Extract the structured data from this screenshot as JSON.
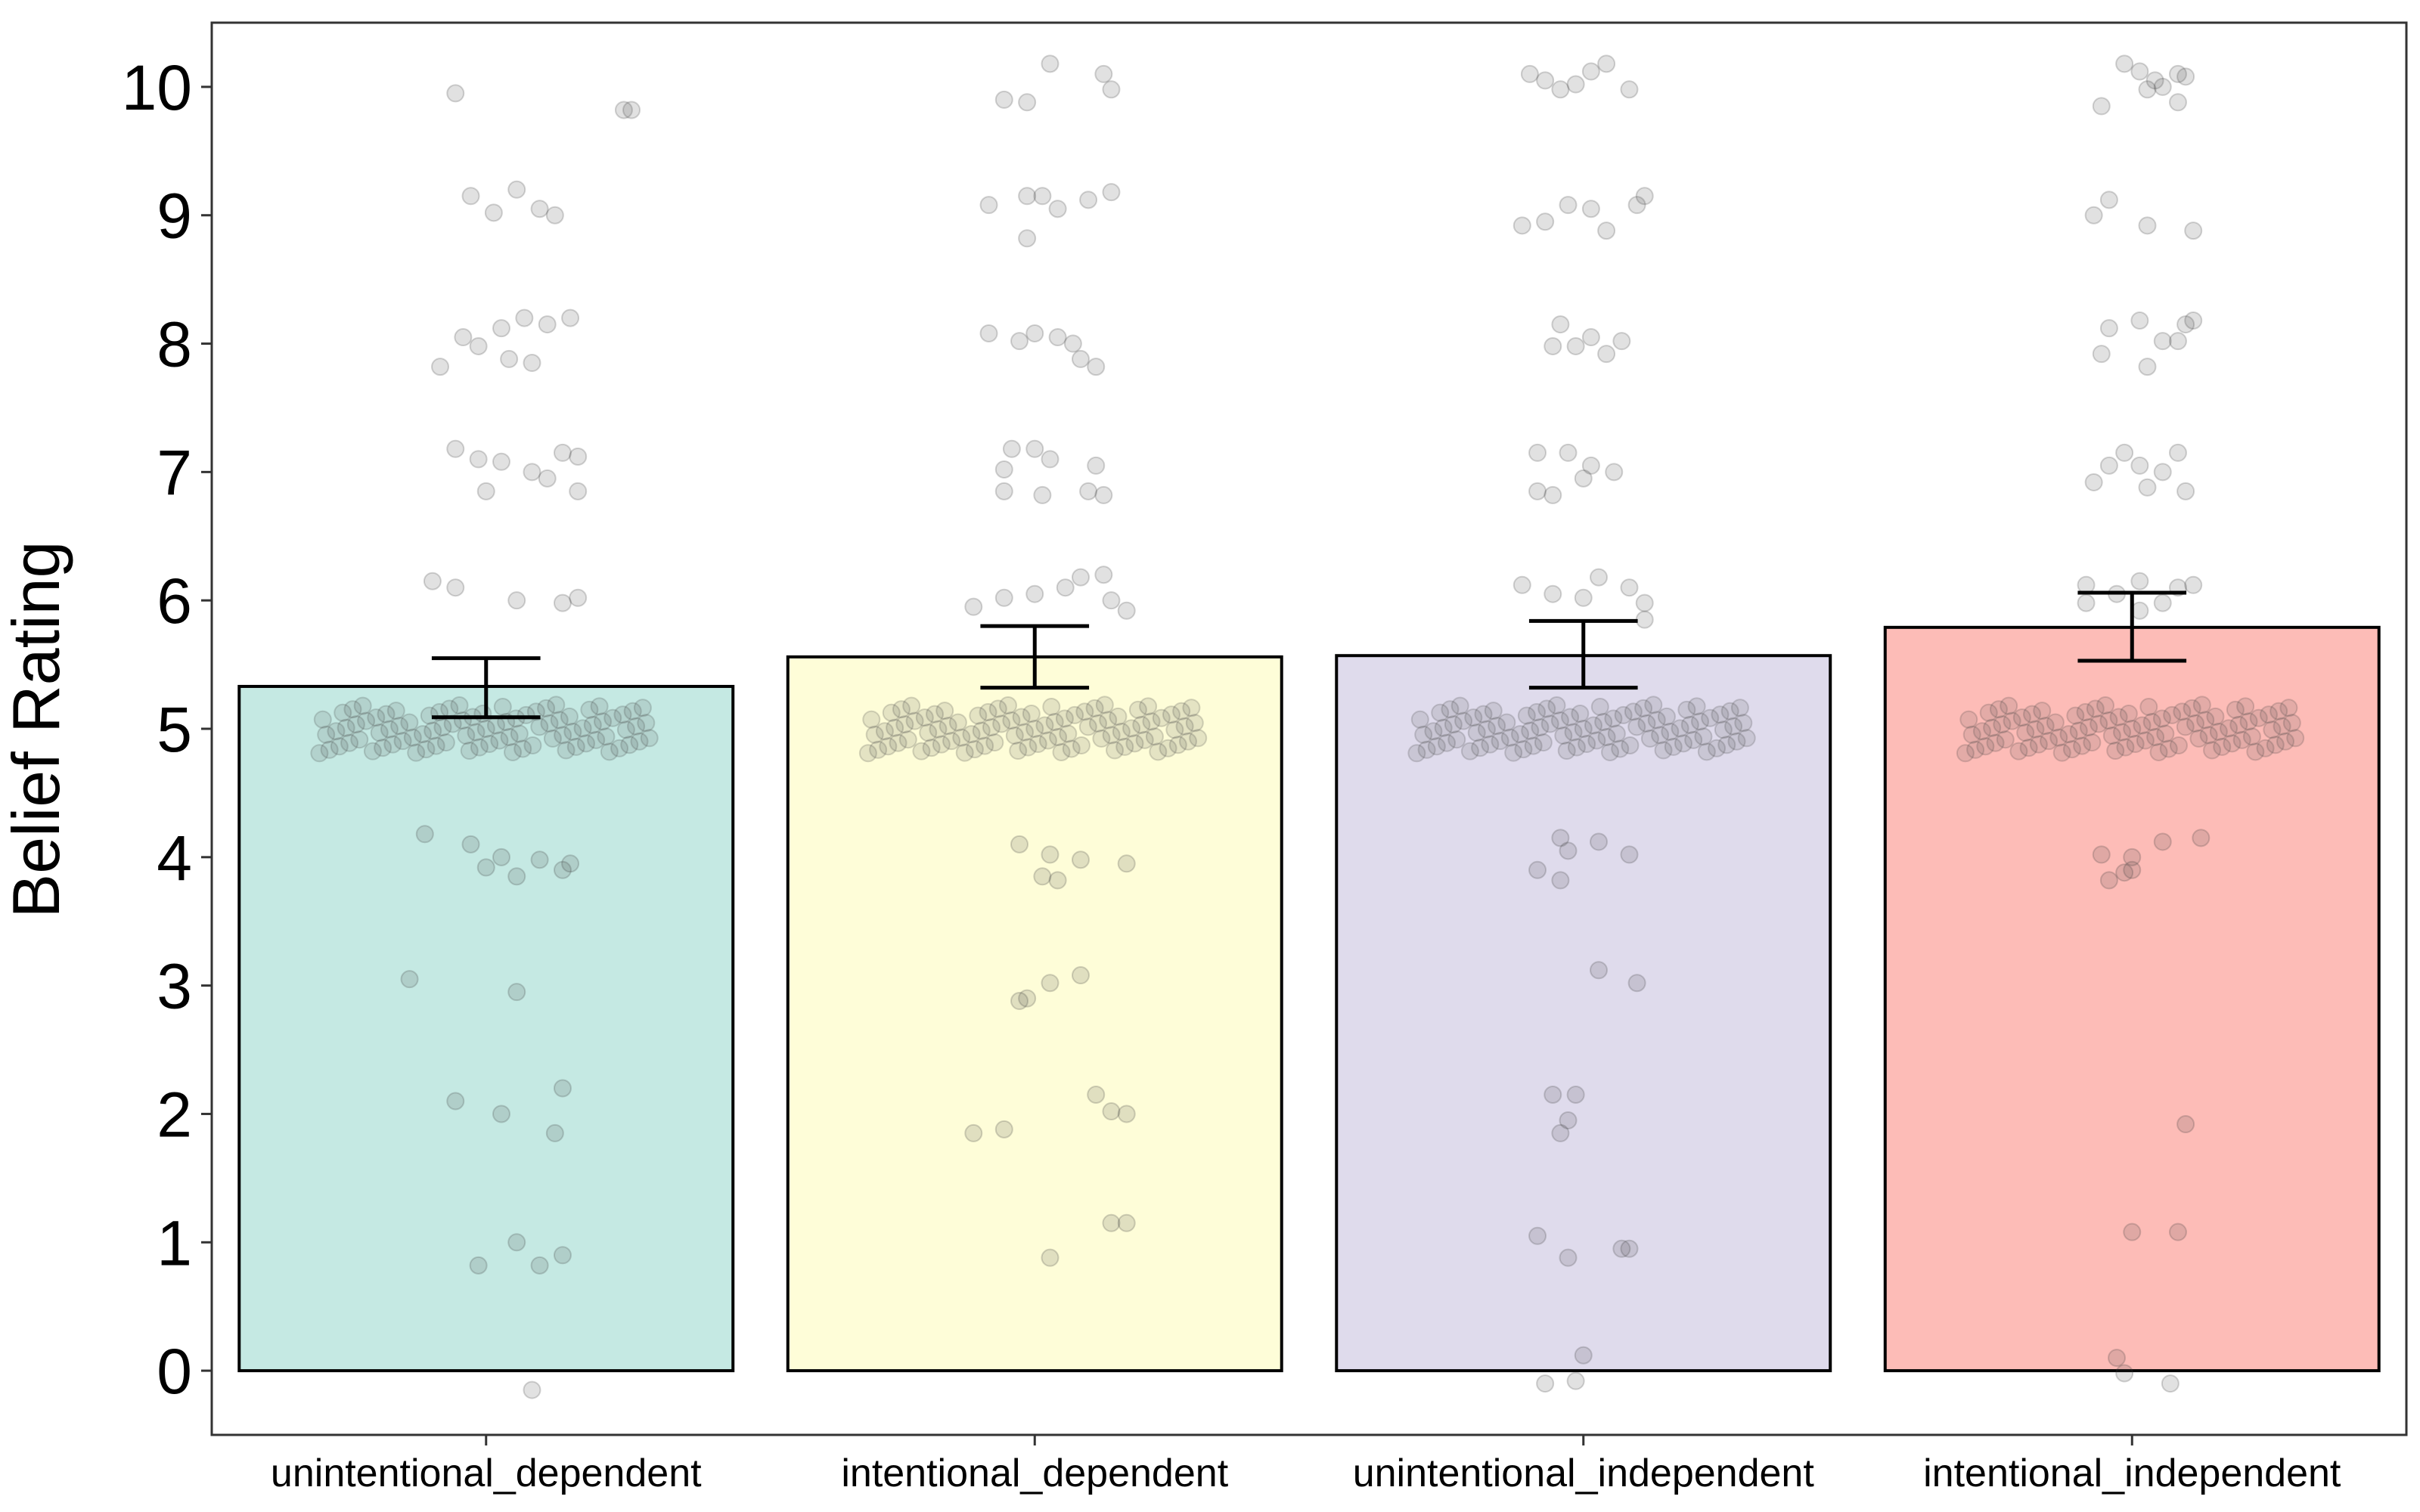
{
  "chart_data": {
    "type": "bar",
    "ylabel": "Belief Rating",
    "xlabel": "",
    "ylim": [
      -0.5,
      10.5
    ],
    "yticks": [
      0,
      1,
      2,
      3,
      4,
      5,
      6,
      7,
      8,
      9,
      10
    ],
    "grid": false,
    "categories": [
      "unintentional_dependent",
      "intentional_dependent",
      "unintentional_independent",
      "intentional_independent"
    ],
    "values": [
      5.33,
      5.56,
      5.57,
      5.79
    ],
    "error_low": [
      5.09,
      5.32,
      5.32,
      5.53
    ],
    "error_high": [
      5.55,
      5.8,
      5.84,
      6.06
    ],
    "colors": [
      "#c5e9e3",
      "#fefdd8",
      "#dfdbec",
      "#fdbcb7"
    ],
    "points": [
      [
        -0.2,
        9.95,
        0.9,
        9.82,
        0.95,
        9.82,
        -0.1,
        9.15,
        0.05,
        9.02,
        0.2,
        9.2,
        0.35,
        9.05,
        0.45,
        9.0,
        -0.15,
        8.05,
        -0.05,
        7.98,
        0.1,
        8.12,
        0.25,
        8.2,
        0.4,
        8.15,
        0.55,
        8.2,
        -0.3,
        7.82,
        0.15,
        7.88,
        0.3,
        7.85,
        -0.2,
        7.18,
        -0.05,
        7.1,
        0.1,
        7.08,
        0.3,
        7.0,
        0.5,
        7.15,
        0.6,
        7.12,
        0.0,
        6.85,
        0.4,
        6.95,
        0.6,
        6.85,
        -0.35,
        6.15,
        -0.2,
        6.1,
        0.2,
        6.0,
        0.5,
        5.98,
        0.6,
        6.02,
        -0.4,
        4.18,
        -0.1,
        4.1,
        0.1,
        4.0,
        0.35,
        3.98,
        0.55,
        3.95,
        0.0,
        3.92,
        0.2,
        3.85,
        0.5,
        3.9,
        -0.5,
        3.05,
        0.2,
        2.95,
        0.5,
        2.2,
        -0.2,
        2.1,
        0.1,
        2.0,
        0.45,
        1.85,
        0.2,
        1.0,
        -0.05,
        0.82,
        0.35,
        0.82,
        0.5,
        0.9,
        0.3,
        -0.15
      ],
      [
        -0.2,
        9.9,
        -0.05,
        9.88,
        0.1,
        10.18,
        0.45,
        10.1,
        0.5,
        9.98,
        -0.3,
        9.08,
        -0.05,
        9.15,
        0.05,
        9.15,
        0.15,
        9.05,
        0.35,
        9.12,
        0.5,
        9.18,
        -0.05,
        8.82,
        -0.3,
        8.08,
        -0.1,
        8.02,
        0.0,
        8.08,
        0.15,
        8.05,
        0.25,
        8.0,
        0.3,
        7.88,
        0.4,
        7.82,
        -0.15,
        7.18,
        0.0,
        7.18,
        0.1,
        7.1,
        -0.2,
        7.02,
        0.4,
        7.05,
        -0.2,
        6.85,
        0.05,
        6.82,
        0.35,
        6.85,
        0.45,
        6.82,
        -0.4,
        5.95,
        -0.2,
        6.02,
        0.0,
        6.05,
        0.2,
        6.1,
        0.3,
        6.18,
        0.45,
        6.2,
        0.5,
        6.0,
        0.6,
        5.92,
        -0.1,
        4.1,
        0.1,
        4.02,
        0.3,
        3.98,
        0.6,
        3.95,
        0.05,
        3.85,
        0.15,
        3.82,
        -0.1,
        2.88,
        -0.05,
        2.9,
        0.1,
        3.02,
        0.3,
        3.08,
        0.4,
        2.15,
        0.5,
        2.02,
        0.6,
        2.0,
        -0.4,
        1.85,
        -0.2,
        1.88,
        0.5,
        1.15,
        0.6,
        1.15,
        0.1,
        0.88
      ],
      [
        -0.35,
        10.1,
        -0.25,
        10.05,
        -0.15,
        9.98,
        -0.05,
        10.02,
        0.05,
        10.12,
        0.15,
        10.18,
        0.3,
        9.98,
        -0.4,
        8.92,
        -0.25,
        8.95,
        -0.1,
        9.08,
        0.05,
        9.05,
        0.15,
        8.88,
        0.35,
        9.08,
        0.4,
        9.15,
        -0.15,
        8.15,
        0.05,
        8.05,
        -0.2,
        7.98,
        -0.05,
        7.98,
        0.15,
        7.92,
        0.25,
        8.02,
        -0.3,
        7.15,
        -0.1,
        7.15,
        0.05,
        7.05,
        0.2,
        7.0,
        -0.2,
        6.82,
        0.0,
        6.95,
        -0.3,
        6.85,
        -0.4,
        6.12,
        -0.2,
        6.05,
        0.0,
        6.02,
        0.1,
        6.18,
        0.3,
        6.1,
        0.4,
        5.98,
        0.4,
        5.85,
        -0.3,
        3.9,
        -0.15,
        4.15,
        -0.1,
        4.05,
        0.1,
        4.12,
        0.3,
        4.02,
        -0.15,
        3.82,
        0.1,
        3.12,
        0.35,
        3.02,
        -0.2,
        2.15,
        -0.05,
        2.15,
        -0.1,
        1.95,
        -0.15,
        1.85,
        -0.3,
        1.05,
        -0.1,
        0.88,
        0.25,
        0.95,
        0.3,
        0.95,
        0.0,
        0.12,
        -0.25,
        -0.1,
        -0.05,
        -0.08
      ],
      [
        -0.05,
        10.18,
        0.05,
        10.12,
        0.15,
        10.05,
        0.3,
        10.1,
        0.35,
        10.08,
        -0.2,
        9.85,
        0.1,
        9.98,
        0.2,
        10.0,
        0.3,
        9.88,
        -0.25,
        9.0,
        -0.15,
        9.12,
        0.1,
        8.92,
        0.4,
        8.88,
        -0.15,
        8.12,
        0.05,
        8.18,
        0.2,
        8.02,
        0.35,
        8.15,
        0.4,
        8.18,
        -0.2,
        7.92,
        0.1,
        7.82,
        0.3,
        8.02,
        -0.15,
        7.05,
        -0.05,
        7.15,
        0.05,
        7.05,
        0.2,
        7.0,
        0.3,
        7.15,
        -0.25,
        6.92,
        0.1,
        6.88,
        0.35,
        6.85,
        -0.3,
        6.12,
        -0.1,
        6.05,
        0.05,
        6.15,
        0.3,
        6.1,
        0.4,
        6.12,
        -0.3,
        5.98,
        0.05,
        5.92,
        0.2,
        5.98,
        -0.2,
        4.02,
        -0.05,
        3.88,
        0.0,
        4.0,
        0.2,
        4.12,
        0.45,
        4.15,
        -0.15,
        3.82,
        0.0,
        3.9,
        0.35,
        1.92,
        0.0,
        1.08,
        0.3,
        1.08,
        -0.1,
        0.1,
        -0.05,
        -0.02,
        0.25,
        -0.1
      ]
    ]
  }
}
